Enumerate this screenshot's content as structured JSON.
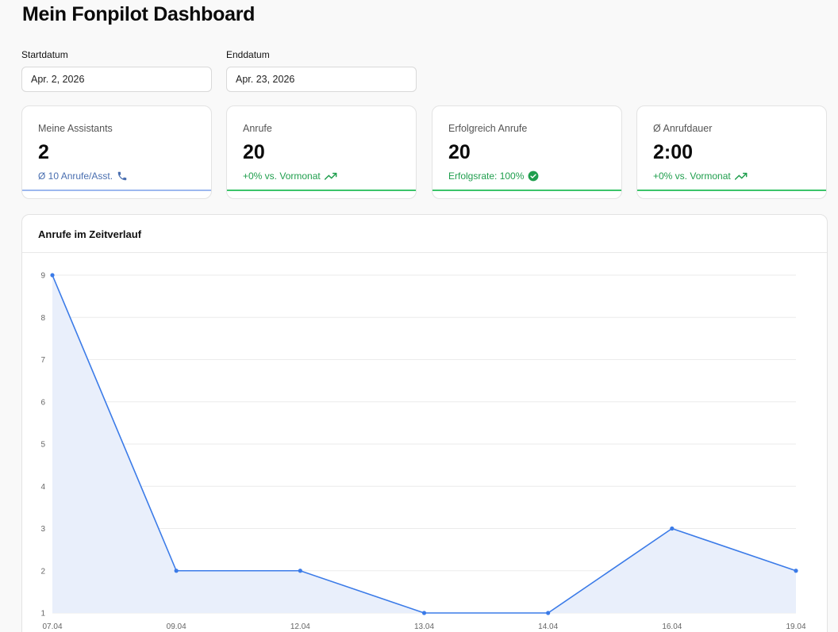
{
  "header": {
    "title": "Mein Fonpilot Dashboard"
  },
  "filters": {
    "start": {
      "label": "Startdatum",
      "value": "Apr. 2, 2026"
    },
    "end": {
      "label": "Enddatum",
      "value": "Apr. 23, 2026"
    }
  },
  "kpis": [
    {
      "label": "Meine Assistants",
      "value": "2",
      "sub": "Ø 10 Anrufe/Asst.",
      "sub_icon": "phone-icon",
      "sub_color": "#4a6fb0",
      "accent_color": "#9db8ef"
    },
    {
      "label": "Anrufe",
      "value": "20",
      "sub": "+0% vs. Vormonat",
      "sub_icon": "trend-up-icon",
      "sub_color": "#1f9e4d",
      "accent_color": "#3cc46a"
    },
    {
      "label": "Erfolgreich Anrufe",
      "value": "20",
      "sub": "Erfolgsrate: 100%",
      "sub_icon": "check-circle-icon",
      "sub_color": "#1f9e4d",
      "accent_color": "#3cc46a"
    },
    {
      "label": "Ø Anrufdauer",
      "value": "2:00",
      "sub": "+0% vs. Vormonat",
      "sub_icon": "trend-up-icon",
      "sub_color": "#1f9e4d",
      "accent_color": "#3cc46a"
    }
  ],
  "chart": {
    "title": "Anrufe im Zeitverlauf"
  },
  "chart_data": {
    "type": "area",
    "title": "Anrufe im Zeitverlauf",
    "categories": [
      "07.04",
      "09.04",
      "12.04",
      "13.04",
      "14.04",
      "16.04",
      "19.04"
    ],
    "values": [
      9,
      2,
      2,
      1,
      1,
      3,
      2
    ],
    "yticks": [
      1,
      2,
      3,
      4,
      5,
      6,
      7,
      8,
      9
    ],
    "ylim": [
      1,
      9
    ],
    "grid": true,
    "line_color": "#3b7be8",
    "fill_color": "#e9effb"
  }
}
